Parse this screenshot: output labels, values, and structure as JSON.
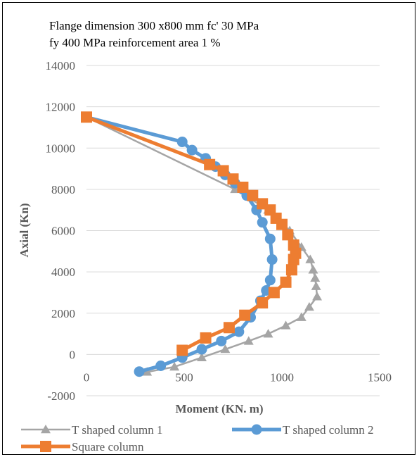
{
  "chart_data": {
    "type": "line",
    "title_lines": [
      "Flange dimension 300 x800 mm    fc' 30 MPa",
      "fy  400 MPa    reinforcement area 1 %"
    ],
    "xlabel": "Moment (KN. m)",
    "ylabel": "Axial (Kn)",
    "xlim": [
      0,
      1500
    ],
    "ylim": [
      -2000,
      14000
    ],
    "x_ticks": [
      0,
      500,
      1000,
      1500
    ],
    "y_ticks": [
      -2000,
      0,
      2000,
      4000,
      6000,
      8000,
      10000,
      12000,
      14000
    ],
    "grid": "horizontal",
    "legend_position": "bottom",
    "series": [
      {
        "name": "T shaped column 1",
        "color": "#a5a5a5",
        "marker": "triangle",
        "points": [
          [
            0,
            11500
          ],
          [
            760,
            8000
          ],
          [
            930,
            7000
          ],
          [
            1040,
            6000
          ],
          [
            1100,
            5200
          ],
          [
            1145,
            4600
          ],
          [
            1160,
            4100
          ],
          [
            1170,
            3700
          ],
          [
            1175,
            3300
          ],
          [
            1180,
            2800
          ],
          [
            1140,
            2300
          ],
          [
            1100,
            1800
          ],
          [
            1020,
            1400
          ],
          [
            930,
            1000
          ],
          [
            830,
            650
          ],
          [
            710,
            250
          ],
          [
            590,
            -150
          ],
          [
            450,
            -600
          ],
          [
            310,
            -850
          ]
        ]
      },
      {
        "name": "T shaped column 2",
        "color": "#5b9bd5",
        "marker": "circle",
        "points": [
          [
            0,
            11500
          ],
          [
            490,
            10300
          ],
          [
            540,
            9900
          ],
          [
            610,
            9500
          ],
          [
            660,
            9100
          ],
          [
            710,
            8700
          ],
          [
            760,
            8300
          ],
          [
            800,
            8000
          ],
          [
            820,
            7700
          ],
          [
            870,
            7000
          ],
          [
            900,
            6400
          ],
          [
            940,
            5600
          ],
          [
            950,
            4600
          ],
          [
            940,
            3600
          ],
          [
            920,
            3100
          ],
          [
            890,
            2600
          ],
          [
            840,
            1800
          ],
          [
            780,
            1100
          ],
          [
            690,
            650
          ],
          [
            590,
            250
          ],
          [
            490,
            -150
          ],
          [
            380,
            -550
          ],
          [
            270,
            -830
          ]
        ]
      },
      {
        "name": "Square column",
        "color": "#ed7d31",
        "marker": "square",
        "points": [
          [
            0,
            11500
          ],
          [
            630,
            9200
          ],
          [
            700,
            8900
          ],
          [
            750,
            8500
          ],
          [
            800,
            8100
          ],
          [
            850,
            7700
          ],
          [
            900,
            7300
          ],
          [
            940,
            7000
          ],
          [
            970,
            6600
          ],
          [
            1000,
            6300
          ],
          [
            1030,
            5800
          ],
          [
            1060,
            5300
          ],
          [
            1070,
            4900
          ],
          [
            1060,
            4600
          ],
          [
            1050,
            4100
          ],
          [
            1020,
            3500
          ],
          [
            960,
            3000
          ],
          [
            900,
            2500
          ],
          [
            810,
            1900
          ],
          [
            730,
            1300
          ],
          [
            610,
            800
          ],
          [
            490,
            200
          ]
        ]
      }
    ]
  }
}
